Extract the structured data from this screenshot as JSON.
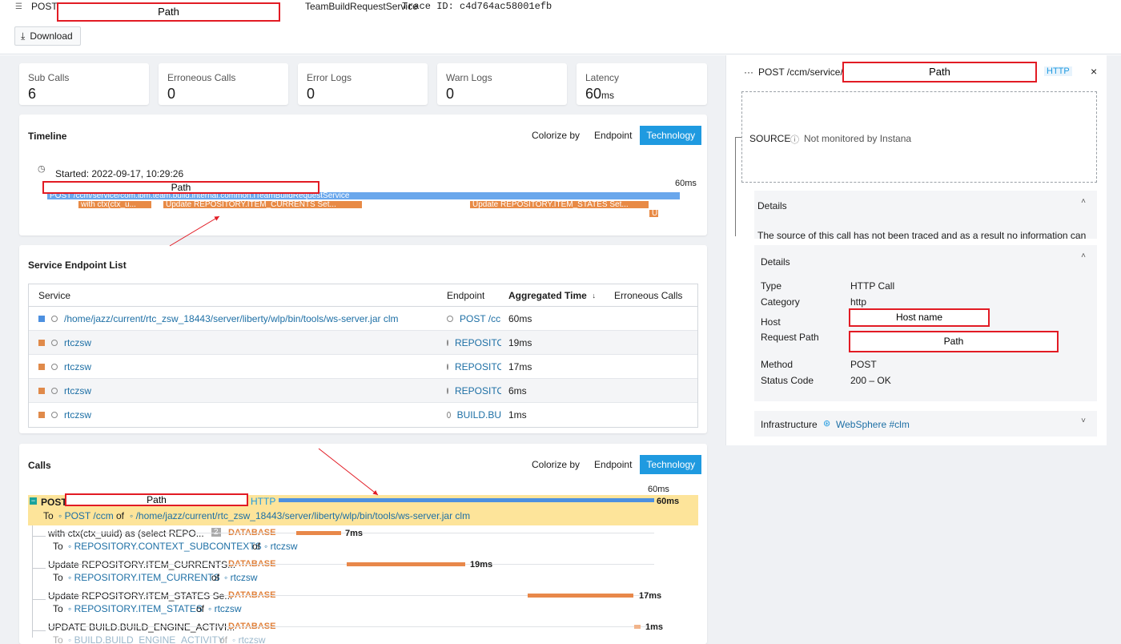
{
  "header": {
    "method": "POST",
    "path_redacted": "Path",
    "service": "TeamBuildRequestService",
    "trace_id": "Trace ID: c4d764ac58001efb",
    "download_label": "Download"
  },
  "stats": [
    {
      "label": "Sub Calls",
      "value": "6"
    },
    {
      "label": "Erroneous Calls",
      "value": "0"
    },
    {
      "label": "Error Logs",
      "value": "0"
    },
    {
      "label": "Warn Logs",
      "value": "0"
    },
    {
      "label": "Latency",
      "value": "60",
      "unit": "ms"
    }
  ],
  "timeline": {
    "title": "Timeline",
    "colorize_label": "Colorize by",
    "opt_endpoint": "Endpoint",
    "opt_technology": "Technology",
    "started": "Started: 2022-09-17, 10:29:26",
    "duration": "60ms",
    "path_redacted": "Path",
    "root_span": "POST /ccm/service/com.ibm.team.build.internal.common.ITeamBuildRequestService",
    "spans": [
      {
        "label": "with ctx(ctx_u...",
        "color": "#e88a45"
      },
      {
        "label": "Update REPOSITORY.ITEM_CURRENTS Set...",
        "color": "#e88a45"
      },
      {
        "label": "Update REPOSITORY.ITEM_STATES Set...",
        "color": "#e88a45"
      },
      {
        "label": "U",
        "color": "#e88a45"
      }
    ]
  },
  "endpoints": {
    "title": "Service Endpoint List",
    "columns": [
      "Service",
      "Endpoint",
      "Aggregated Time",
      "Erroneous Calls"
    ],
    "rows": [
      {
        "service": "/home/jazz/current/rtc_zsw_18443/server/liberty/wlp/bin/tools/ws-server.jar clm",
        "endpoint": "POST /cc",
        "time": "60ms",
        "color": "blue"
      },
      {
        "service": "rtczsw",
        "endpoint": "REPOSITO",
        "time": "19ms",
        "color": "orange"
      },
      {
        "service": "rtczsw",
        "endpoint": "REPOSITO",
        "time": "17ms",
        "color": "orange"
      },
      {
        "service": "rtczsw",
        "endpoint": "REPOSITO",
        "time": "6ms",
        "color": "orange"
      },
      {
        "service": "rtczsw",
        "endpoint": "BUILD.BU",
        "time": "1ms",
        "color": "orange"
      }
    ]
  },
  "calls": {
    "title": "Calls",
    "colorize_label": "Colorize by",
    "opt_endpoint": "Endpoint",
    "opt_technology": "Technology",
    "duration_top": "60ms",
    "root": {
      "method": "POST",
      "path_redacted": "Path",
      "type": "HTTP",
      "ms": "60ms",
      "to_label": "To",
      "endpoint": "POST /ccm",
      "of": "of",
      "service": "/home/jazz/current/rtc_zsw_18443/server/liberty/wlp/bin/tools/ws-server.jar clm"
    },
    "children": [
      {
        "name": "with ctx(ctx_uuid) as (select REPO...",
        "badge": "2",
        "type": "DATABASE",
        "ms": "7ms",
        "to": "REPOSITORY.CONTEXT_SUBCONTEXTS",
        "service": "rtczsw"
      },
      {
        "name": "Update REPOSITORY.ITEM_CURRENTS...",
        "badge": "",
        "type": "DATABASE",
        "ms": "19ms",
        "to": "REPOSITORY.ITEM_CURRENTS",
        "service": "rtczsw"
      },
      {
        "name": "Update REPOSITORY.ITEM_STATES Se...",
        "badge": "",
        "type": "DATABASE",
        "ms": "17ms",
        "to": "REPOSITORY.ITEM_STATES",
        "service": "rtczsw"
      },
      {
        "name": "UPDATE BUILD.BUILD_ENGINE_ACTIVI...",
        "badge": "",
        "type": "DATABASE",
        "ms": "1ms",
        "to": "BUILD.BUILD_ENGINE_ACTIVITY",
        "service": "rtczsw"
      }
    ],
    "to_label": "To",
    "of": "of"
  },
  "panel": {
    "title": "POST /ccm/service/",
    "path_redacted": "Path",
    "type": "HTTP",
    "close": "×",
    "source_label": "SOURCE",
    "source_text": "Not monitored by Instana",
    "details1_title": "Details",
    "details1_text": "The source of this call has not been traced and as a result no information can",
    "details2_title": "Details",
    "fields": [
      {
        "key": "Type",
        "value": "HTTP Call"
      },
      {
        "key": "Category",
        "value": "http"
      },
      {
        "key": "Host",
        "value": "Host name"
      },
      {
        "key": "Request Path",
        "value": "Path"
      },
      {
        "key": "Method",
        "value": "POST"
      },
      {
        "key": "Status Code",
        "value": "200 – OK"
      }
    ],
    "infra_label": "Infrastructure",
    "infra_value": "WebSphere #clm"
  },
  "colors": {
    "accent": "#1f9ae0",
    "database": "#e07f38",
    "http_bar": "#4d90e0",
    "highlight": "#fde49a",
    "redaction_border": "#e21b24"
  }
}
